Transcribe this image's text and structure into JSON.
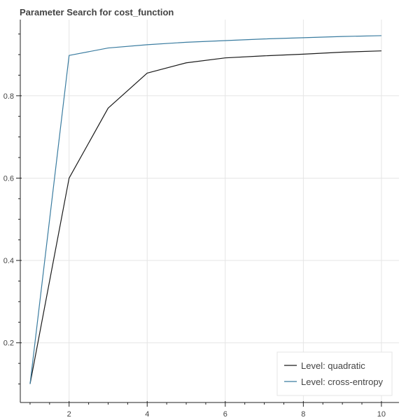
{
  "chart_data": {
    "type": "line",
    "title": "Parameter Search for cost_function",
    "xlabel": "",
    "ylabel": "",
    "xlim": [
      0.75,
      10.45
    ],
    "ylim": [
      0.055,
      0.985
    ],
    "x_ticks": [
      2,
      4,
      6,
      8,
      10
    ],
    "x_tick_labels": [
      "2",
      "4",
      "6",
      "8",
      "10"
    ],
    "x_minor_ticks": [
      1,
      3,
      5,
      7,
      9
    ],
    "y_ticks": [
      0.2,
      0.4,
      0.6,
      0.8
    ],
    "y_tick_labels": [
      "0.2",
      "0.4",
      "0.6",
      "0.8"
    ],
    "grid": true,
    "legend_position": "bottom-right",
    "series": [
      {
        "name": "Level: quadratic",
        "color": "#1a1a1a",
        "x": [
          1,
          2,
          3,
          4,
          5,
          6,
          7,
          8,
          9,
          10
        ],
        "values": [
          0.1,
          0.6,
          0.77,
          0.855,
          0.88,
          0.892,
          0.897,
          0.901,
          0.906,
          0.909
        ]
      },
      {
        "name": "Level: cross-entropy",
        "color": "#3a7ca0",
        "x": [
          1,
          2,
          3,
          4,
          5,
          6,
          7,
          8,
          9,
          10
        ],
        "values": [
          0.1,
          0.898,
          0.916,
          0.924,
          0.93,
          0.934,
          0.938,
          0.941,
          0.944,
          0.946
        ]
      }
    ]
  }
}
